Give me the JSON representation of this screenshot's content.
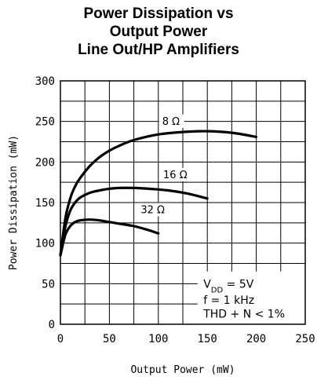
{
  "chart_data": {
    "type": "line",
    "title_lines": [
      "Power Dissipation vs",
      "Output Power",
      "Line Out/HP Amplifiers"
    ],
    "xlabel": "Output Power (mW)",
    "ylabel": "Power Dissipation (mW)",
    "xlim": [
      0,
      250
    ],
    "ylim": [
      0,
      300
    ],
    "x_ticks": [
      "0",
      "50",
      "100",
      "150",
      "200",
      "250"
    ],
    "y_ticks": [
      "0",
      "50",
      "100",
      "150",
      "200",
      "250",
      "300"
    ],
    "grid": true,
    "series": [
      {
        "name": "8 Ω",
        "x": [
          0,
          5,
          10,
          15,
          20,
          30,
          40,
          50,
          60,
          75,
          100,
          125,
          150,
          175,
          200
        ],
        "y": [
          85,
          130,
          155,
          170,
          180,
          195,
          206,
          214,
          220,
          227,
          234,
          237,
          238,
          236,
          231
        ]
      },
      {
        "name": "16 Ω",
        "x": [
          0,
          5,
          10,
          15,
          20,
          30,
          40,
          50,
          60,
          75,
          90,
          110,
          130,
          150
        ],
        "y": [
          85,
          120,
          140,
          150,
          156,
          162,
          165,
          167,
          168,
          168,
          167,
          165,
          161,
          155
        ]
      },
      {
        "name": "32 Ω",
        "x": [
          0,
          5,
          10,
          15,
          20,
          30,
          40,
          50,
          60,
          75,
          90,
          100
        ],
        "y": [
          85,
          110,
          121,
          126,
          128,
          129,
          128,
          126,
          124,
          121,
          116,
          112
        ]
      }
    ],
    "conditions": [
      "V_DD = 5V",
      "f = 1 kHz",
      "THD + N < 1%"
    ]
  }
}
